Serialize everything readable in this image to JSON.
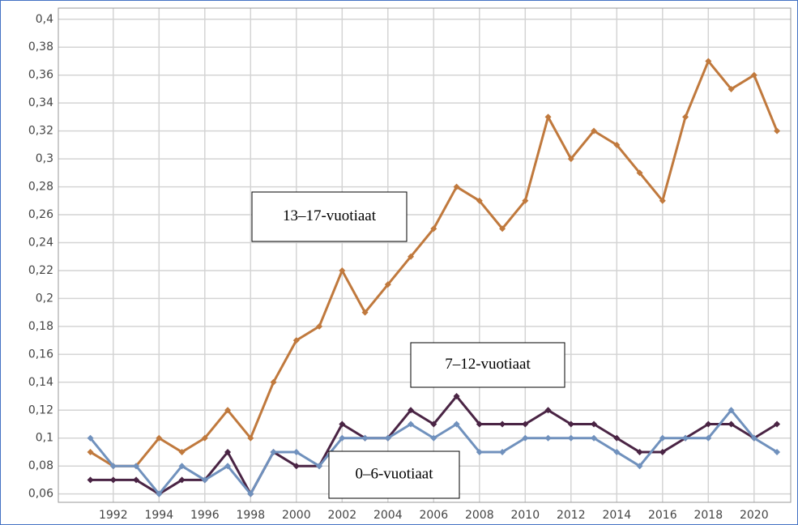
{
  "chart_data": {
    "type": "line",
    "x": [
      1991,
      1992,
      1993,
      1994,
      1995,
      1996,
      1997,
      1998,
      1999,
      2000,
      2001,
      2002,
      2003,
      2004,
      2005,
      2006,
      2007,
      2008,
      2009,
      2010,
      2011,
      2012,
      2013,
      2014,
      2015,
      2016,
      2017,
      2018,
      2019,
      2020,
      2021
    ],
    "series": [
      {
        "name": "13–17-vuotiaat",
        "color": "#c0793d",
        "values": [
          0.09,
          0.08,
          0.08,
          0.1,
          0.09,
          0.1,
          0.12,
          0.1,
          0.14,
          0.17,
          0.18,
          0.22,
          0.19,
          0.21,
          0.23,
          0.25,
          0.28,
          0.27,
          0.25,
          0.27,
          0.33,
          0.3,
          0.32,
          0.31,
          0.29,
          0.27,
          0.33,
          0.37,
          0.35,
          0.36,
          0.32
        ]
      },
      {
        "name": "7–12-vuotiaat",
        "color": "#4a2444",
        "values": [
          0.07,
          0.07,
          0.07,
          0.06,
          0.07,
          0.07,
          0.09,
          0.06,
          0.09,
          0.08,
          0.08,
          0.11,
          0.1,
          0.1,
          0.12,
          0.11,
          0.13,
          0.11,
          0.11,
          0.11,
          0.12,
          0.11,
          0.11,
          0.1,
          0.09,
          0.09,
          0.1,
          0.11,
          0.11,
          0.1,
          0.11
        ]
      },
      {
        "name": "0–6-vuotiaat",
        "color": "#7091bd",
        "values": [
          0.1,
          0.08,
          0.08,
          0.06,
          0.08,
          0.07,
          0.08,
          0.06,
          0.09,
          0.09,
          0.08,
          0.1,
          0.1,
          0.1,
          0.11,
          0.1,
          0.11,
          0.09,
          0.09,
          0.1,
          0.1,
          0.1,
          0.1,
          0.09,
          0.08,
          0.1,
          0.1,
          0.1,
          0.12,
          0.1,
          0.09
        ]
      }
    ],
    "xlim": [
      1989.6,
      2021.6
    ],
    "xticks": [
      1992,
      1994,
      1996,
      1998,
      2000,
      2002,
      2004,
      2006,
      2008,
      2010,
      2012,
      2014,
      2016,
      2018,
      2020
    ],
    "ylim": [
      0.054,
      0.408
    ],
    "yticks": [
      {
        "value": 0.4,
        "label": "0,4"
      },
      {
        "value": 0.38,
        "label": "0,38"
      },
      {
        "value": 0.36,
        "label": "0,36"
      },
      {
        "value": 0.34,
        "label": "0,34"
      },
      {
        "value": 0.32,
        "label": "0,32"
      },
      {
        "value": 0.3,
        "label": "0,3"
      },
      {
        "value": 0.28,
        "label": "0,28"
      },
      {
        "value": 0.26,
        "label": "0,26"
      },
      {
        "value": 0.24,
        "label": "0,24"
      },
      {
        "value": 0.22,
        "label": "0,22"
      },
      {
        "value": 0.2,
        "label": "0,2"
      },
      {
        "value": 0.18,
        "label": "0,18"
      },
      {
        "value": 0.16,
        "label": "0,16"
      },
      {
        "value": 0.14,
        "label": "0,14"
      },
      {
        "value": 0.12,
        "label": "0,12"
      },
      {
        "value": 0.1,
        "label": "0,1"
      },
      {
        "value": 0.08,
        "label": "0,08"
      },
      {
        "value": 0.06,
        "label": "0,06"
      }
    ],
    "grid": true
  }
}
